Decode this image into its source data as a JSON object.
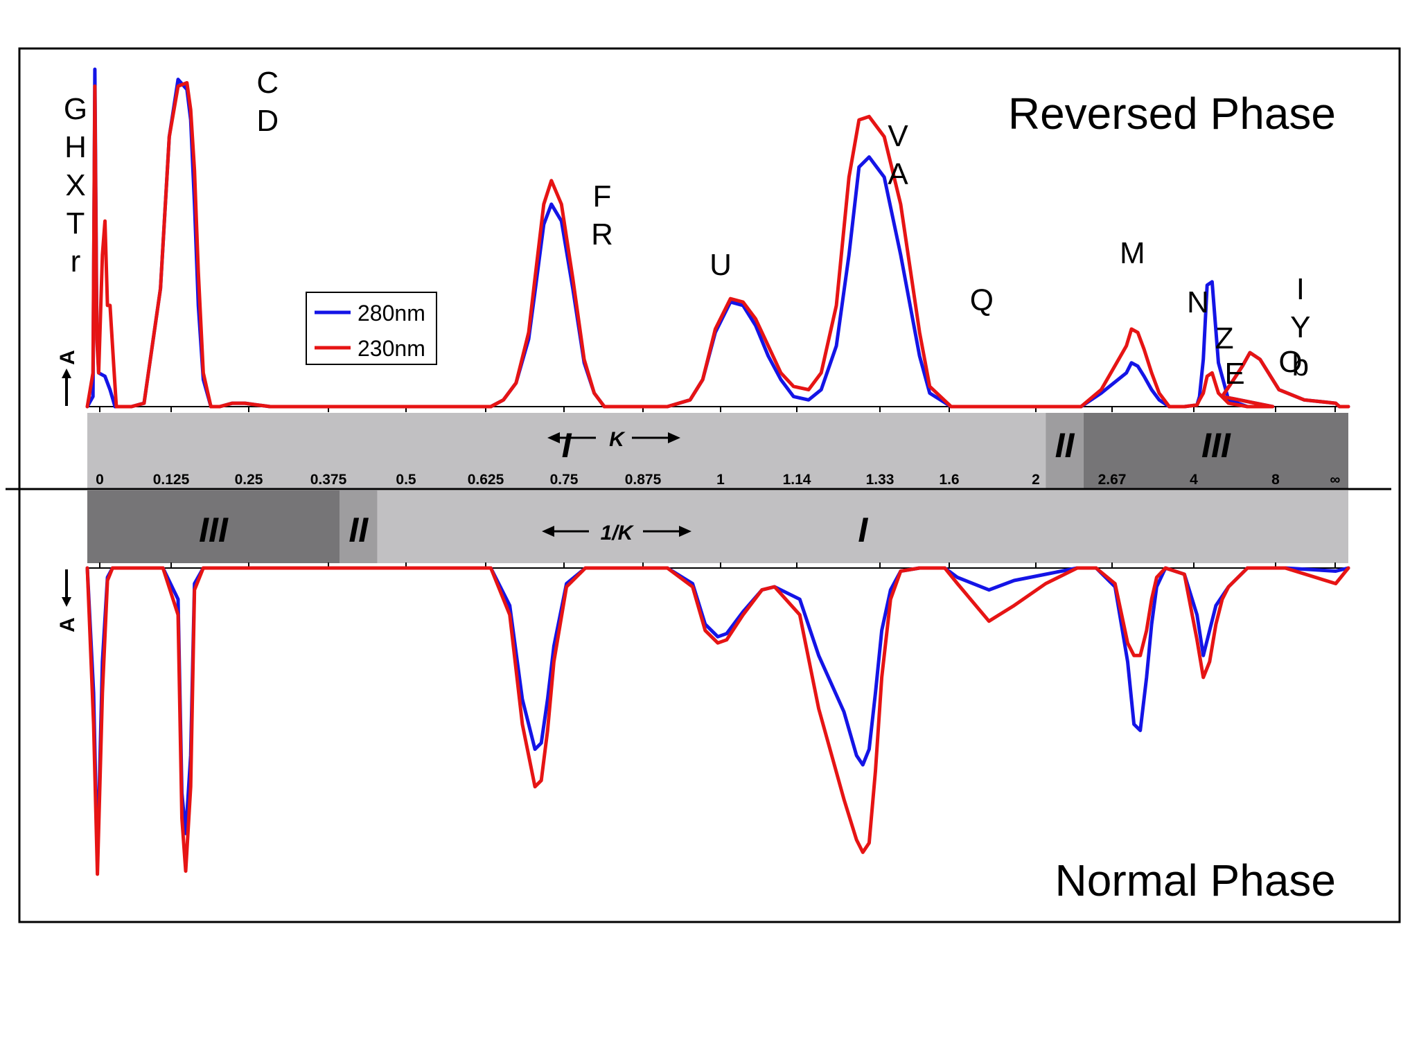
{
  "chart_data": {
    "type": "line",
    "panels": [
      {
        "id": "top",
        "title": "Reversed Phase",
        "y_axis_label": "A"
      },
      {
        "id": "bottom",
        "title": "Normal Phase",
        "y_axis_label": "A"
      }
    ],
    "legend": {
      "placement": "upper-left",
      "entries": [
        {
          "label": "280nm",
          "color": "#1414e6"
        },
        {
          "label": "230nm",
          "color": "#e61414"
        }
      ]
    },
    "shared_axis": {
      "ticks": [
        "0",
        "0.125",
        "0.25",
        "0.375",
        "0.5",
        "0.625",
        "0.75",
        "0.875",
        "1",
        "1.14",
        "1.33",
        "1.6",
        "2",
        "2.67",
        "4",
        "8",
        "∞"
      ],
      "top_arrow_label": "K",
      "bottom_arrow_label": "1/K"
    },
    "top_regions": [
      {
        "label": "I",
        "from": 0,
        "to": 0.76,
        "shade": "#c1c0c2"
      },
      {
        "label": "II",
        "from": 0.76,
        "to": 0.79,
        "shade": "#9e9d9f"
      },
      {
        "label": "III",
        "from": 0.79,
        "to": 1.0,
        "shade": "#767577"
      }
    ],
    "bottom_regions": [
      {
        "label": "III",
        "from": 0,
        "to": 0.2,
        "shade": "#767577"
      },
      {
        "label": "II",
        "from": 0.2,
        "to": 0.23,
        "shade": "#9e9d9f"
      },
      {
        "label": "I",
        "from": 0.23,
        "to": 1.0,
        "shade": "#c1c0c2"
      }
    ],
    "peak_labels_top": [
      {
        "lines": [
          "G",
          "H",
          "X",
          "T",
          "r"
        ],
        "position": 0.0
      },
      {
        "lines": [
          "C",
          "D"
        ],
        "position": 0.18
      },
      {
        "lines": [
          "F",
          "R"
        ],
        "position": 0.75
      },
      {
        "lines": [
          "U"
        ],
        "position": 1.0
      },
      {
        "lines": [
          "V",
          "A"
        ],
        "position": 1.3
      },
      {
        "lines": [
          "Q"
        ],
        "position": 1.75
      },
      {
        "lines": [
          "M"
        ],
        "position": 3.0
      },
      {
        "lines": [
          "N"
        ],
        "position": 4.2
      },
      {
        "lines": [
          "Z"
        ],
        "position": 5.5
      },
      {
        "lines": [
          "E"
        ],
        "position": 6.0
      },
      {
        "lines": [
          "O"
        ],
        "position": 11.0
      },
      {
        "lines": [
          "I",
          "Y",
          "b"
        ],
        "position": 13.0
      }
    ],
    "series": [
      {
        "name": "280nm",
        "panel": "top",
        "x": [
          0.0,
          0.0045,
          0.006,
          0.0075,
          0.009,
          0.014,
          0.018,
          0.022,
          0.035,
          0.045,
          0.058,
          0.065,
          0.072,
          0.079,
          0.082,
          0.085,
          0.088,
          0.092,
          0.098,
          0.105,
          0.115,
          0.125,
          0.135,
          0.145,
          0.16,
          0.17,
          0.25,
          0.32,
          0.33,
          0.34,
          0.35,
          0.355,
          0.362,
          0.368,
          0.376,
          0.385,
          0.394,
          0.402,
          0.41,
          0.42,
          0.44,
          0.46,
          0.478,
          0.488,
          0.498,
          0.51,
          0.52,
          0.53,
          0.54,
          0.55,
          0.56,
          0.572,
          0.582,
          0.594,
          0.604,
          0.612,
          0.62,
          0.632,
          0.645,
          0.66,
          0.668,
          0.685,
          0.725,
          0.76,
          0.788,
          0.804,
          0.824,
          0.828,
          0.833,
          0.838,
          0.844,
          0.85,
          0.858,
          0.87,
          0.88,
          0.882,
          0.885,
          0.888,
          0.892,
          0.897,
          0.905,
          0.92,
          0.94,
          0.9,
          0.909,
          0.916,
          0.922,
          0.93,
          0.945,
          0.965,
          0.99,
          0.993,
          0.996,
          1.0
        ],
        "y": [
          0.0,
          0.03,
          1.0,
          0.25,
          0.1,
          0.09,
          0.05,
          0.0,
          0.0,
          0.01,
          0.35,
          0.8,
          0.97,
          0.94,
          0.85,
          0.6,
          0.3,
          0.08,
          0.0,
          0.0,
          0.01,
          0.01,
          0.005,
          0.0,
          0.0,
          0.0,
          0.0,
          0.0,
          0.02,
          0.07,
          0.2,
          0.34,
          0.54,
          0.6,
          0.55,
          0.35,
          0.13,
          0.04,
          0.0,
          0.0,
          0.0,
          0.0,
          0.02,
          0.08,
          0.22,
          0.31,
          0.3,
          0.24,
          0.15,
          0.08,
          0.03,
          0.02,
          0.05,
          0.18,
          0.45,
          0.71,
          0.74,
          0.68,
          0.45,
          0.15,
          0.04,
          0.0,
          0.0,
          0.0,
          0.0,
          0.04,
          0.1,
          0.13,
          0.12,
          0.09,
          0.05,
          0.02,
          0.0,
          0.0,
          0.005,
          0.03,
          0.14,
          0.36,
          0.37,
          0.13,
          0.02,
          0.0,
          0.0,
          0.03,
          0.08,
          0.12,
          0.16,
          0.14,
          0.05,
          0.02,
          0.01,
          0.0,
          0.0,
          0.0
        ]
      },
      {
        "name": "230nm",
        "panel": "top",
        "x": [
          0.0,
          0.0045,
          0.006,
          0.0075,
          0.009,
          0.012,
          0.014,
          0.016,
          0.018,
          0.021,
          0.023,
          0.035,
          0.045,
          0.058,
          0.065,
          0.072,
          0.079,
          0.082,
          0.085,
          0.088,
          0.092,
          0.098,
          0.105,
          0.115,
          0.125,
          0.135,
          0.145,
          0.16,
          0.17,
          0.25,
          0.32,
          0.33,
          0.34,
          0.35,
          0.355,
          0.362,
          0.368,
          0.376,
          0.385,
          0.394,
          0.402,
          0.41,
          0.42,
          0.44,
          0.46,
          0.478,
          0.488,
          0.498,
          0.51,
          0.52,
          0.53,
          0.54,
          0.55,
          0.56,
          0.572,
          0.582,
          0.594,
          0.604,
          0.612,
          0.62,
          0.632,
          0.645,
          0.66,
          0.668,
          0.685,
          0.725,
          0.76,
          0.788,
          0.804,
          0.824,
          0.828,
          0.833,
          0.838,
          0.844,
          0.85,
          0.858,
          0.87,
          0.88,
          0.882,
          0.885,
          0.888,
          0.892,
          0.897,
          0.905,
          0.92,
          0.94,
          0.9,
          0.909,
          0.916,
          0.922,
          0.93,
          0.945,
          0.965,
          0.99,
          0.993,
          0.996,
          1.0
        ],
        "y": [
          0.0,
          0.1,
          0.95,
          0.2,
          0.1,
          0.45,
          0.55,
          0.3,
          0.3,
          0.12,
          0.0,
          0.0,
          0.01,
          0.35,
          0.8,
          0.95,
          0.96,
          0.88,
          0.7,
          0.4,
          0.1,
          0.0,
          0.0,
          0.01,
          0.01,
          0.005,
          0.0,
          0.0,
          0.0,
          0.0,
          0.0,
          0.02,
          0.07,
          0.22,
          0.38,
          0.6,
          0.67,
          0.6,
          0.38,
          0.14,
          0.04,
          0.0,
          0.0,
          0.0,
          0.0,
          0.02,
          0.08,
          0.23,
          0.32,
          0.31,
          0.26,
          0.18,
          0.1,
          0.06,
          0.05,
          0.1,
          0.3,
          0.68,
          0.85,
          0.86,
          0.8,
          0.6,
          0.22,
          0.06,
          0.0,
          0.0,
          0.0,
          0.0,
          0.05,
          0.18,
          0.23,
          0.22,
          0.17,
          0.1,
          0.04,
          0.0,
          0.0,
          0.005,
          0.02,
          0.04,
          0.09,
          0.1,
          0.04,
          0.01,
          0.0,
          0.0,
          0.03,
          0.08,
          0.12,
          0.16,
          0.14,
          0.05,
          0.02,
          0.01,
          0.0,
          0.0,
          0.0
        ]
      },
      {
        "name": "280nm",
        "panel": "bottom",
        "x": [
          0.0,
          0.005,
          0.008,
          0.012,
          0.016,
          0.02,
          0.04,
          0.06,
          0.072,
          0.075,
          0.078,
          0.082,
          0.085,
          0.092,
          0.1,
          0.28,
          0.32,
          0.335,
          0.345,
          0.355,
          0.36,
          0.365,
          0.37,
          0.38,
          0.395,
          0.41,
          0.46,
          0.48,
          0.49,
          0.5,
          0.507,
          0.52,
          0.535,
          0.545,
          0.565,
          0.58,
          0.6,
          0.61,
          0.615,
          0.62,
          0.625,
          0.63,
          0.637,
          0.645,
          0.66,
          0.68,
          0.69,
          0.715,
          0.735,
          0.76,
          0.785,
          0.8,
          0.815,
          0.825,
          0.83,
          0.835,
          0.84,
          0.844,
          0.848,
          0.855,
          0.87,
          0.88,
          0.885,
          0.89,
          0.895,
          0.9,
          0.905,
          0.92,
          0.95,
          0.99,
          1.0
        ],
        "y": [
          0.0,
          0.4,
          0.95,
          0.3,
          0.03,
          0.0,
          0.0,
          0.0,
          0.1,
          0.72,
          0.85,
          0.6,
          0.05,
          0.0,
          0.0,
          0.0,
          0.0,
          0.12,
          0.42,
          0.58,
          0.56,
          0.42,
          0.25,
          0.05,
          0.0,
          0.0,
          0.0,
          0.05,
          0.18,
          0.22,
          0.21,
          0.14,
          0.07,
          0.06,
          0.1,
          0.28,
          0.46,
          0.6,
          0.63,
          0.58,
          0.4,
          0.2,
          0.07,
          0.01,
          0.0,
          0.0,
          0.03,
          0.07,
          0.04,
          0.02,
          0.0,
          0.0,
          0.06,
          0.3,
          0.5,
          0.52,
          0.35,
          0.18,
          0.06,
          0.0,
          0.02,
          0.15,
          0.28,
          0.2,
          0.12,
          0.09,
          0.06,
          0.0,
          0.0,
          0.01,
          0.0
        ]
      },
      {
        "name": "230nm",
        "panel": "bottom",
        "x": [
          0.0,
          0.005,
          0.008,
          0.012,
          0.016,
          0.02,
          0.04,
          0.06,
          0.072,
          0.075,
          0.078,
          0.082,
          0.085,
          0.092,
          0.1,
          0.28,
          0.32,
          0.335,
          0.345,
          0.355,
          0.36,
          0.365,
          0.37,
          0.38,
          0.395,
          0.41,
          0.46,
          0.48,
          0.49,
          0.5,
          0.507,
          0.52,
          0.535,
          0.545,
          0.565,
          0.58,
          0.6,
          0.61,
          0.615,
          0.62,
          0.625,
          0.63,
          0.637,
          0.645,
          0.66,
          0.68,
          0.69,
          0.715,
          0.735,
          0.76,
          0.785,
          0.8,
          0.815,
          0.825,
          0.83,
          0.835,
          0.84,
          0.844,
          0.848,
          0.855,
          0.87,
          0.88,
          0.885,
          0.89,
          0.895,
          0.9,
          0.905,
          0.92,
          0.95,
          0.99,
          1.0
        ],
        "y": [
          0.0,
          0.5,
          0.98,
          0.4,
          0.04,
          0.0,
          0.0,
          0.0,
          0.15,
          0.8,
          0.97,
          0.7,
          0.07,
          0.0,
          0.0,
          0.0,
          0.0,
          0.15,
          0.5,
          0.7,
          0.68,
          0.52,
          0.3,
          0.06,
          0.0,
          0.0,
          0.0,
          0.06,
          0.2,
          0.24,
          0.23,
          0.15,
          0.07,
          0.06,
          0.15,
          0.45,
          0.74,
          0.87,
          0.91,
          0.88,
          0.65,
          0.35,
          0.1,
          0.01,
          0.0,
          0.0,
          0.05,
          0.17,
          0.12,
          0.05,
          0.0,
          0.0,
          0.05,
          0.24,
          0.28,
          0.28,
          0.2,
          0.1,
          0.03,
          0.0,
          0.02,
          0.23,
          0.35,
          0.3,
          0.18,
          0.1,
          0.06,
          0.0,
          0.0,
          0.05,
          0.0
        ]
      }
    ]
  }
}
